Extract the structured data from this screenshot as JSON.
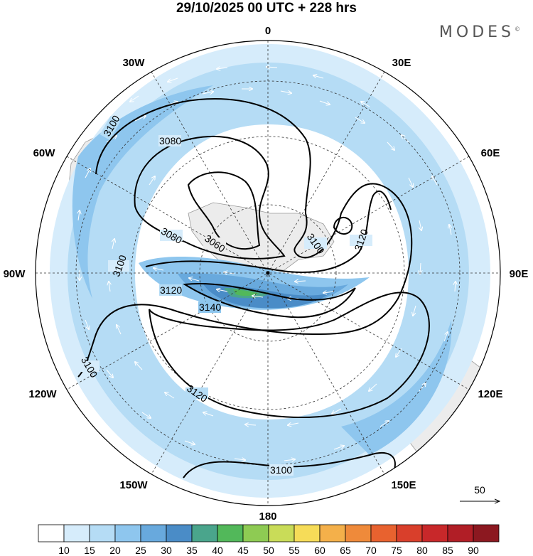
{
  "title": "29/10/2025  00 UTC  + 228 hrs",
  "brand": "MODES",
  "brand_mark": "©",
  "map": {
    "projection": "south-polar-stereographic",
    "longitude_labels": [
      {
        "text": "0",
        "pos": "top"
      },
      {
        "text": "30E",
        "pos": "top-right"
      },
      {
        "text": "60E",
        "pos": "right-upper"
      },
      {
        "text": "90E",
        "pos": "right"
      },
      {
        "text": "120E",
        "pos": "right-lower"
      },
      {
        "text": "150E",
        "pos": "bottom-right"
      },
      {
        "text": "180",
        "pos": "bottom"
      },
      {
        "text": "150W",
        "pos": "bottom-left"
      },
      {
        "text": "120W",
        "pos": "left-lower"
      },
      {
        "text": "90W",
        "pos": "left"
      },
      {
        "text": "60W",
        "pos": "left-upper"
      },
      {
        "text": "30W",
        "pos": "top-left"
      }
    ],
    "contour_labels": [
      "3100",
      "3080",
      "3060",
      "3080",
      "3100",
      "3120",
      "3140",
      "3100",
      "3120",
      "3100",
      "3100",
      "3120"
    ],
    "vector_reference": "50"
  },
  "colorbar": {
    "ticks": [
      "10",
      "15",
      "20",
      "25",
      "30",
      "35",
      "40",
      "45",
      "50",
      "55",
      "60",
      "65",
      "70",
      "75",
      "80",
      "85",
      "90"
    ],
    "colors": [
      "#ffffff",
      "#d6ecfb",
      "#b5dcf5",
      "#8ec6ee",
      "#68a9dd",
      "#4a8cc7",
      "#4aa58c",
      "#52b85a",
      "#8ecb53",
      "#c9dc58",
      "#f6dc58",
      "#f4b04a",
      "#ef8a3a",
      "#e8622f",
      "#d93f2b",
      "#c8282a",
      "#b11e26",
      "#8c1820"
    ]
  }
}
